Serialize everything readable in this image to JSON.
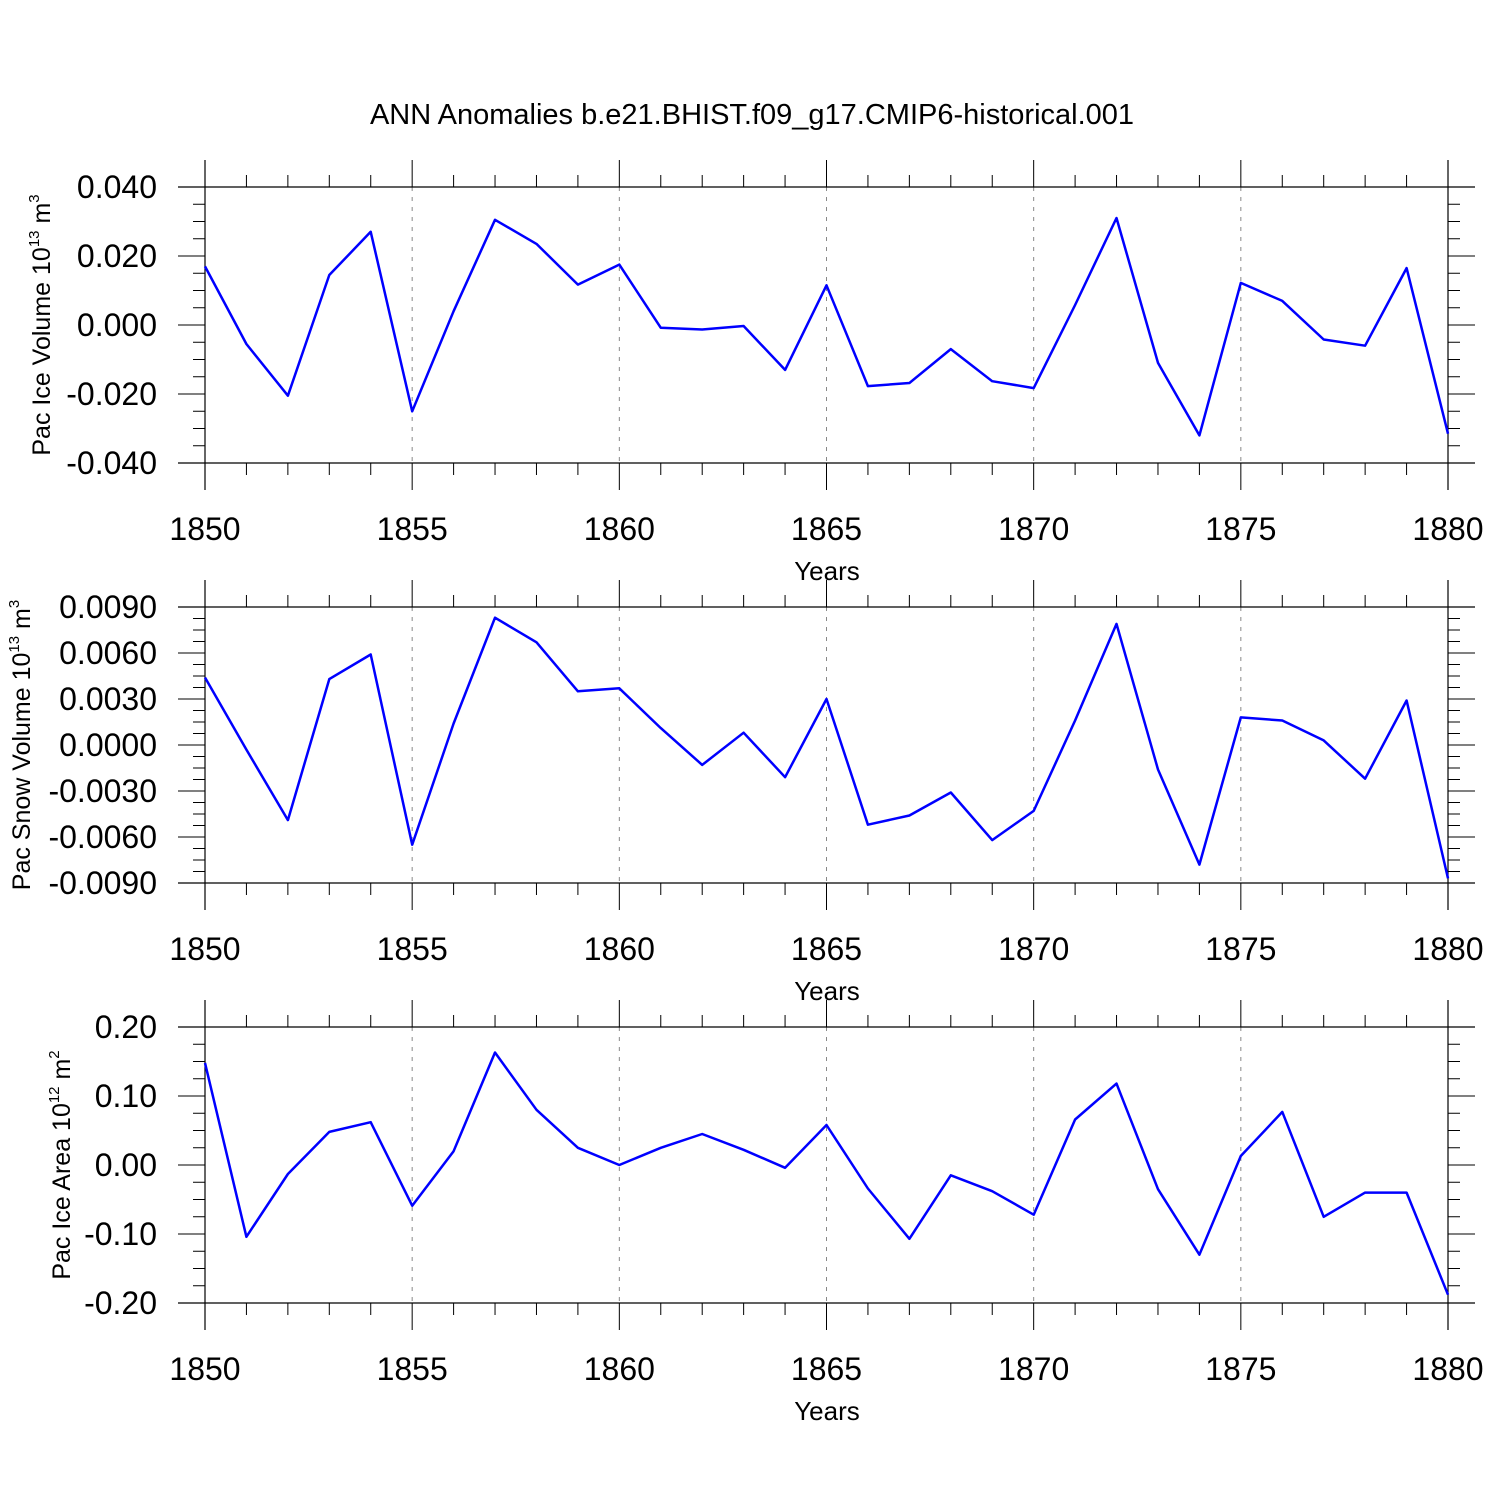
{
  "title": "ANN Anomalies b.e21.BHIST.f09_g17.CMIP6-historical.001",
  "line_color": "#0000ff",
  "chart_data": [
    {
      "type": "line",
      "ylabel": "Pac Ice Volume 10",
      "ylabel_exp": "13",
      "ylabel_unit": " m",
      "ylabel_unit_exp": "3",
      "xlabel": "Years",
      "xlim": [
        1850,
        1880
      ],
      "ylim": [
        -0.04,
        0.04
      ],
      "yticks": [
        -0.04,
        -0.02,
        0.0,
        0.02,
        0.04
      ],
      "ytick_labels": [
        "-0.040",
        "-0.020",
        "0.000",
        "0.020",
        "0.040"
      ],
      "xticks": [
        1850,
        1855,
        1860,
        1865,
        1870,
        1875,
        1880
      ],
      "xtick_labels": [
        "1850",
        "1855",
        "1860",
        "1865",
        "1870",
        "1875",
        "1880"
      ],
      "x": [
        1850,
        1851,
        1852,
        1853,
        1854,
        1855,
        1856,
        1857,
        1858,
        1859,
        1860,
        1861,
        1862,
        1863,
        1864,
        1865,
        1866,
        1867,
        1868,
        1869,
        1870,
        1871,
        1872,
        1873,
        1874,
        1875,
        1876,
        1877,
        1878,
        1879,
        1880
      ],
      "values": [
        0.017,
        -0.0055,
        -0.0205,
        0.0145,
        0.027,
        -0.025,
        0.004,
        0.0305,
        0.0235,
        0.0117,
        0.0175,
        -0.0008,
        -0.0013,
        -0.0003,
        -0.013,
        0.0115,
        -0.0177,
        -0.0168,
        -0.007,
        -0.0163,
        -0.0183,
        0.0058,
        0.031,
        -0.011,
        -0.032,
        0.0122,
        0.007,
        -0.0042,
        -0.006,
        0.0165,
        -0.0315
      ]
    },
    {
      "type": "line",
      "ylabel": "Pac Snow Volume 10",
      "ylabel_exp": "13",
      "ylabel_unit": " m",
      "ylabel_unit_exp": "3",
      "xlabel": "Years",
      "xlim": [
        1850,
        1880
      ],
      "ylim": [
        -0.009,
        0.009
      ],
      "yticks": [
        -0.009,
        -0.006,
        -0.003,
        0.0,
        0.003,
        0.006,
        0.009
      ],
      "ytick_labels": [
        "-0.0090",
        "-0.0060",
        "-0.0030",
        "0.0000",
        "0.0030",
        "0.0060",
        "0.0090"
      ],
      "xticks": [
        1850,
        1855,
        1860,
        1865,
        1870,
        1875,
        1880
      ],
      "xtick_labels": [
        "1850",
        "1855",
        "1860",
        "1865",
        "1870",
        "1875",
        "1880"
      ],
      "x": [
        1850,
        1851,
        1852,
        1853,
        1854,
        1855,
        1856,
        1857,
        1858,
        1859,
        1860,
        1861,
        1862,
        1863,
        1864,
        1865,
        1866,
        1867,
        1868,
        1869,
        1870,
        1871,
        1872,
        1873,
        1874,
        1875,
        1876,
        1877,
        1878,
        1879,
        1880
      ],
      "values": [
        0.0044,
        -0.0003,
        -0.0049,
        0.0043,
        0.0059,
        -0.0065,
        0.0014,
        0.0083,
        0.0067,
        0.0035,
        0.0037,
        0.0011,
        -0.0013,
        0.0008,
        -0.0021,
        0.003,
        -0.0052,
        -0.0046,
        -0.0031,
        -0.0062,
        -0.0043,
        0.0016,
        0.0079,
        -0.0016,
        -0.0078,
        0.0018,
        0.0016,
        0.0003,
        -0.0022,
        0.0029,
        -0.0087
      ]
    },
    {
      "type": "line",
      "ylabel": "Pac Ice Area 10",
      "ylabel_exp": "12",
      "ylabel_unit": " m",
      "ylabel_unit_exp": "2",
      "xlabel": "Years",
      "xlim": [
        1850,
        1880
      ],
      "ylim": [
        -0.2,
        0.2
      ],
      "yticks": [
        -0.2,
        -0.1,
        0.0,
        0.1,
        0.2
      ],
      "ytick_labels": [
        "-0.20",
        "-0.10",
        "0.00",
        "0.10",
        "0.20"
      ],
      "xticks": [
        1850,
        1855,
        1860,
        1865,
        1870,
        1875,
        1880
      ],
      "xtick_labels": [
        "1850",
        "1855",
        "1860",
        "1865",
        "1870",
        "1875",
        "1880"
      ],
      "x": [
        1850,
        1851,
        1852,
        1853,
        1854,
        1855,
        1856,
        1857,
        1858,
        1859,
        1860,
        1861,
        1862,
        1863,
        1864,
        1865,
        1866,
        1867,
        1868,
        1869,
        1870,
        1871,
        1872,
        1873,
        1874,
        1875,
        1876,
        1877,
        1878,
        1879,
        1880
      ],
      "values": [
        0.148,
        -0.104,
        -0.013,
        0.048,
        0.062,
        -0.059,
        0.02,
        0.163,
        0.08,
        0.025,
        0.0,
        0.025,
        0.045,
        0.022,
        -0.004,
        0.058,
        -0.034,
        -0.107,
        -0.015,
        -0.038,
        -0.072,
        0.066,
        0.118,
        -0.035,
        -0.13,
        0.013,
        0.077,
        -0.075,
        -0.04,
        -0.04,
        -0.188
      ]
    }
  ]
}
